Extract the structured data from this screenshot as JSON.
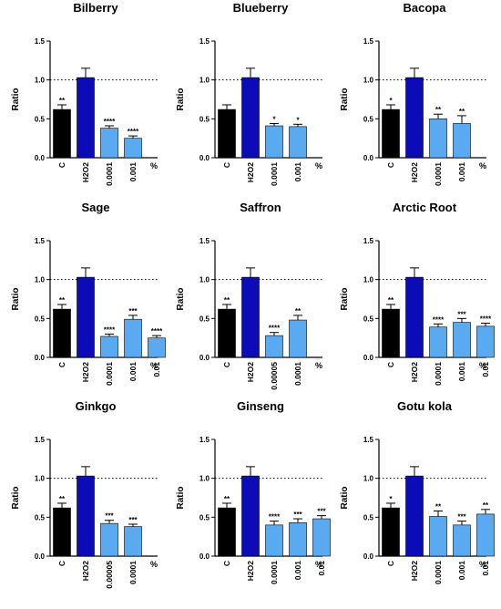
{
  "colors": {
    "control": "#000000",
    "h2o2": "#0b0bb8",
    "treatment": "#5aaaf2",
    "axis": "#000000",
    "reference": "#000000"
  },
  "shared": {
    "ylabel": "Ratio",
    "unit": "%",
    "yticks": [
      "0.0",
      "0.5",
      "1.0",
      "1.5"
    ],
    "ylim": [
      0,
      1.5
    ],
    "reference_line": 1.0
  },
  "chart_data": [
    {
      "type": "bar",
      "title": "Bilberry",
      "ylabel": "Ratio",
      "ylim": [
        0,
        1.5
      ],
      "categories": [
        "C",
        "H2O2",
        "0.0001",
        "0.001"
      ],
      "values": [
        0.62,
        1.03,
        0.38,
        0.25
      ],
      "errors": [
        0.06,
        0.12,
        0.03,
        0.03
      ],
      "significance": [
        "**",
        "",
        "****",
        "****"
      ]
    },
    {
      "type": "bar",
      "title": "Blueberry",
      "ylabel": "Ratio",
      "ylim": [
        0,
        1.5
      ],
      "categories": [
        "C",
        "H2O2",
        "0.0001",
        "0.001"
      ],
      "values": [
        0.62,
        1.03,
        0.41,
        0.4
      ],
      "errors": [
        0.06,
        0.12,
        0.03,
        0.03
      ],
      "significance": [
        "",
        "",
        "*",
        "*"
      ]
    },
    {
      "type": "bar",
      "title": "Bacopa",
      "ylabel": "Ratio",
      "ylim": [
        0,
        1.5
      ],
      "categories": [
        "C",
        "H2O2",
        "0.0001",
        "0.001"
      ],
      "values": [
        0.62,
        1.03,
        0.5,
        0.44
      ],
      "errors": [
        0.06,
        0.12,
        0.06,
        0.1
      ],
      "significance": [
        "*",
        "",
        "**",
        "**"
      ]
    },
    {
      "type": "bar",
      "title": "Sage",
      "ylabel": "Ratio",
      "ylim": [
        0,
        1.5
      ],
      "categories": [
        "C",
        "H2O2",
        "0.0001",
        "0.001",
        "0.01"
      ],
      "values": [
        0.62,
        1.03,
        0.27,
        0.49,
        0.25
      ],
      "errors": [
        0.06,
        0.12,
        0.03,
        0.05,
        0.03
      ],
      "significance": [
        "**",
        "",
        "****",
        "***",
        "****"
      ]
    },
    {
      "type": "bar",
      "title": "Saffron",
      "ylabel": "Ratio",
      "ylim": [
        0,
        1.5
      ],
      "categories": [
        "C",
        "H2O2",
        "0.00005",
        "0.0001"
      ],
      "values": [
        0.62,
        1.03,
        0.28,
        0.48
      ],
      "errors": [
        0.06,
        0.12,
        0.04,
        0.06
      ],
      "significance": [
        "**",
        "",
        "****",
        "**"
      ]
    },
    {
      "type": "bar",
      "title": "Arctic Root",
      "ylabel": "Ratio",
      "ylim": [
        0,
        1.5
      ],
      "categories": [
        "C",
        "H2O2",
        "0.0001",
        "0.001",
        "0.01"
      ],
      "values": [
        0.62,
        1.03,
        0.39,
        0.45,
        0.4
      ],
      "errors": [
        0.06,
        0.12,
        0.04,
        0.05,
        0.04
      ],
      "significance": [
        "**",
        "",
        "****",
        "***",
        "****"
      ]
    },
    {
      "type": "bar",
      "title": "Ginkgo",
      "ylabel": "Ratio",
      "ylim": [
        0,
        1.5
      ],
      "categories": [
        "C",
        "H2O2",
        "0.00005",
        "0.0001"
      ],
      "values": [
        0.62,
        1.03,
        0.42,
        0.38
      ],
      "errors": [
        0.06,
        0.12,
        0.04,
        0.03
      ],
      "significance": [
        "**",
        "",
        "***",
        "***"
      ]
    },
    {
      "type": "bar",
      "title": "Ginseng",
      "ylabel": "Ratio",
      "ylim": [
        0,
        1.5
      ],
      "categories": [
        "C",
        "H2O2",
        "0.0001",
        "0.001",
        "0.01"
      ],
      "values": [
        0.62,
        1.03,
        0.4,
        0.43,
        0.48
      ],
      "errors": [
        0.06,
        0.12,
        0.05,
        0.05,
        0.04
      ],
      "significance": [
        "**",
        "",
        "****",
        "***",
        "***"
      ]
    },
    {
      "type": "bar",
      "title": "Gotu kola",
      "ylabel": "Ratio",
      "ylim": [
        0,
        1.5
      ],
      "categories": [
        "C",
        "H2O2",
        "0.0001",
        "0.001",
        "0.01"
      ],
      "values": [
        0.62,
        1.03,
        0.51,
        0.4,
        0.54
      ],
      "errors": [
        0.06,
        0.12,
        0.07,
        0.05,
        0.06
      ],
      "significance": [
        "*",
        "",
        "**",
        "***",
        "**"
      ]
    }
  ]
}
